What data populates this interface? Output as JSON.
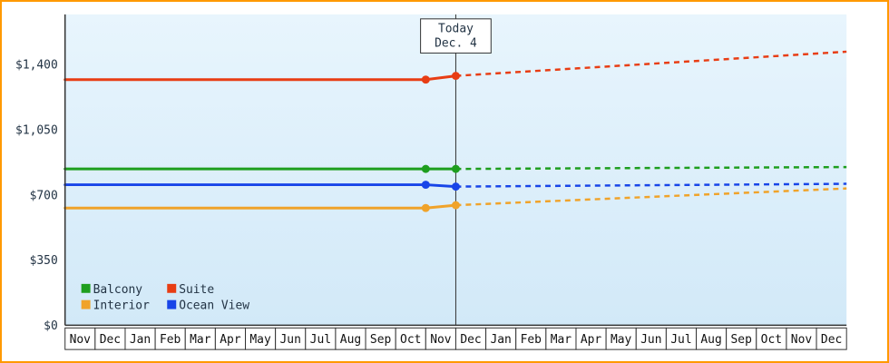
{
  "frame": {
    "border_color": "#ff9900",
    "background": "#ffffff"
  },
  "chart_data": {
    "type": "line",
    "title": "",
    "categories": [
      "Nov",
      "Dec",
      "Jan",
      "Feb",
      "Mar",
      "Apr",
      "May",
      "Jun",
      "Jul",
      "Aug",
      "Sep",
      "Oct",
      "Nov",
      "Dec",
      "Jan",
      "Feb",
      "Mar",
      "Apr",
      "May",
      "Jun",
      "Jul",
      "Aug",
      "Sep",
      "Oct",
      "Nov",
      "Dec"
    ],
    "ylim": [
      0,
      1400
    ],
    "y_ticks": {
      "labels": [
        "$0",
        "$350",
        "$700",
        "$1,050",
        "$1,400"
      ],
      "values": [
        0,
        350,
        700,
        1050,
        1400
      ]
    },
    "today": {
      "label_line1": "Today",
      "label_line2": "Dec. 4",
      "index": 13
    },
    "series": [
      {
        "name": "Balcony",
        "color": "#1e9e1e",
        "history": [
          840,
          840,
          840
        ],
        "forecast_end": 850
      },
      {
        "name": "Suite",
        "color": "#e83d14",
        "history": [
          1320,
          1320,
          1340
        ],
        "forecast_end": 1470
      },
      {
        "name": "Interior",
        "color": "#f0a32a",
        "history": [
          630,
          630,
          645
        ],
        "forecast_end": 735
      },
      {
        "name": "Ocean View",
        "color": "#1845e8",
        "history": [
          755,
          755,
          745
        ],
        "forecast_end": 760
      }
    ],
    "legend": {
      "position": "bottom-left",
      "order": [
        "Balcony",
        "Suite",
        "Interior",
        "Ocean View"
      ]
    },
    "line_style": {
      "history": "solid",
      "forecast": "dashed"
    },
    "plot_bg_top": "#e8f5fd",
    "plot_bg_bottom": "#d2e9f8",
    "axis_color": "#333333",
    "text_color": "#223344",
    "month_box_fill": "#ffffff",
    "month_box_stroke": "#333333"
  }
}
